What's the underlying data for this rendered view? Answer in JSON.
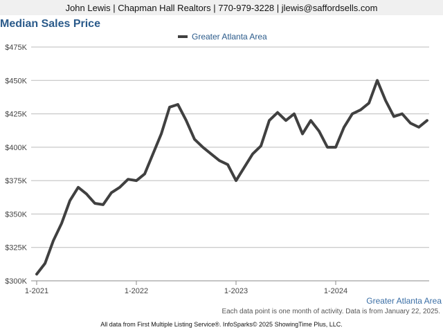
{
  "header": {
    "agent_line": "John Lewis | Chapman Hall Realtors | 770-979-3228 | jlewis@saffordsells.com"
  },
  "chart_data": {
    "type": "line",
    "title": "Median Sales Price",
    "xlabel": "",
    "ylabel": "",
    "ylim": [
      300000,
      475000
    ],
    "yticks": [
      300000,
      325000,
      350000,
      375000,
      400000,
      425000,
      450000,
      475000
    ],
    "ytick_labels": [
      "$300K",
      "$325K",
      "$350K",
      "$375K",
      "$400K",
      "$425K",
      "$450K",
      "$475K"
    ],
    "xtick_labels": [
      "1-2021",
      "1-2022",
      "1-2023",
      "1-2024"
    ],
    "xtick_index": [
      0,
      12,
      24,
      36
    ],
    "grid": true,
    "legend_position": "top-center",
    "series": [
      {
        "name": "Greater Atlanta Area",
        "color": "#404040",
        "values": [
          305000,
          313000,
          330000,
          343000,
          360000,
          370000,
          365000,
          358000,
          357000,
          366000,
          370000,
          376000,
          375000,
          380000,
          395000,
          410000,
          430000,
          432000,
          420000,
          406000,
          400000,
          395000,
          390000,
          387000,
          375000,
          385000,
          395000,
          401000,
          420000,
          426000,
          420000,
          425000,
          410000,
          420000,
          412000,
          400000,
          400000,
          415000,
          425000,
          428000,
          433000,
          450000,
          435000,
          423000,
          425000,
          418000,
          415000,
          420000
        ]
      }
    ]
  },
  "footer": {
    "region_label": "Greater Atlanta Area",
    "note": "Each data point is one month of activity. Data is from January 22, 2025.",
    "credit": "All data from First Multiple Listing Service®. InfoSparks© 2025 ShowingTime Plus, LLC."
  }
}
